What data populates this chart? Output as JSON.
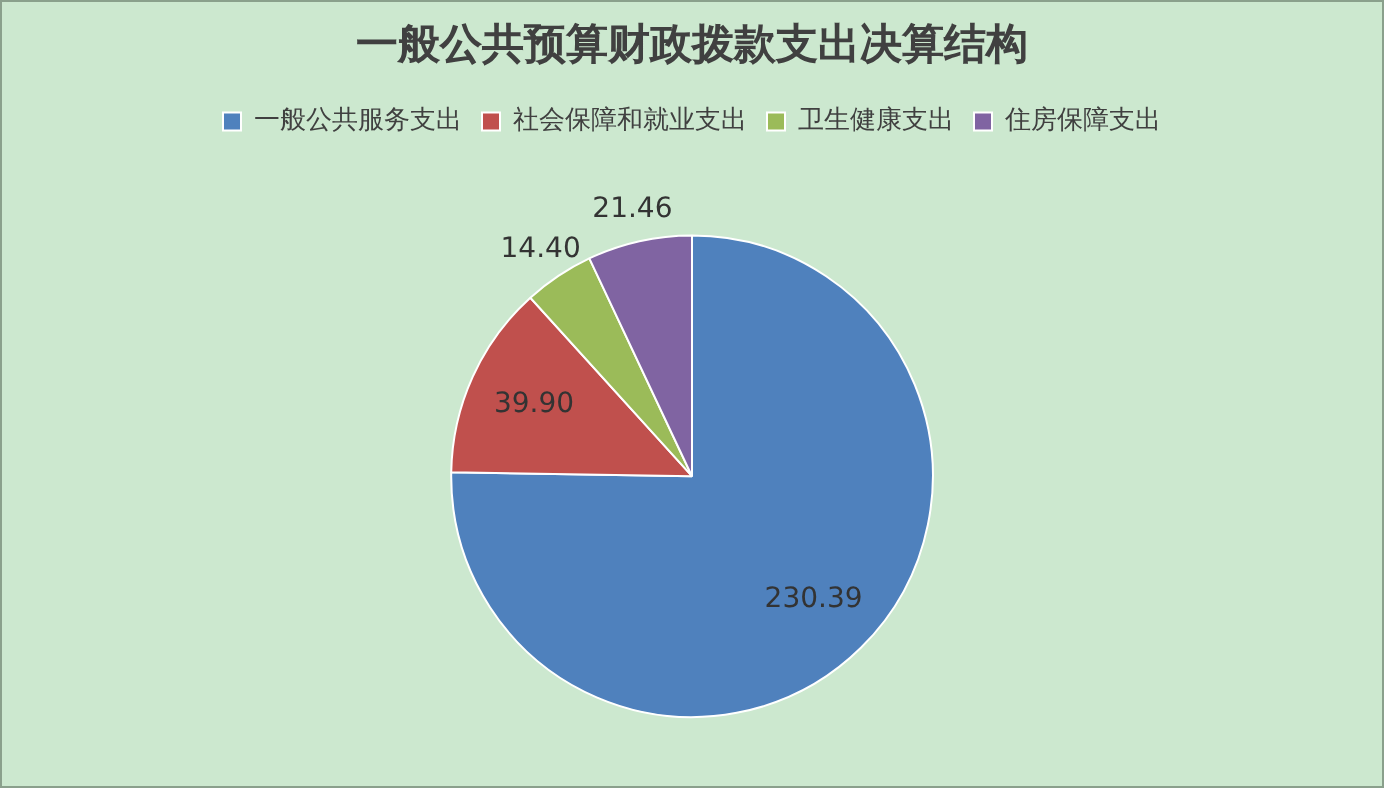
{
  "chart_data": {
    "type": "pie",
    "title": "一般公共预算财政拨款支出决算结构",
    "categories": [
      "一般公共服务支出",
      "社会保障和就业支出",
      "卫生健康支出",
      "住房保障支出"
    ],
    "values": [
      230.39,
      39.9,
      14.4,
      21.46
    ],
    "value_labels": [
      "230.39",
      "39.90",
      "14.40",
      "21.46"
    ],
    "colors": [
      "#4f81bd",
      "#c0504d",
      "#9bbb59",
      "#8064a2"
    ],
    "legend": "top"
  }
}
